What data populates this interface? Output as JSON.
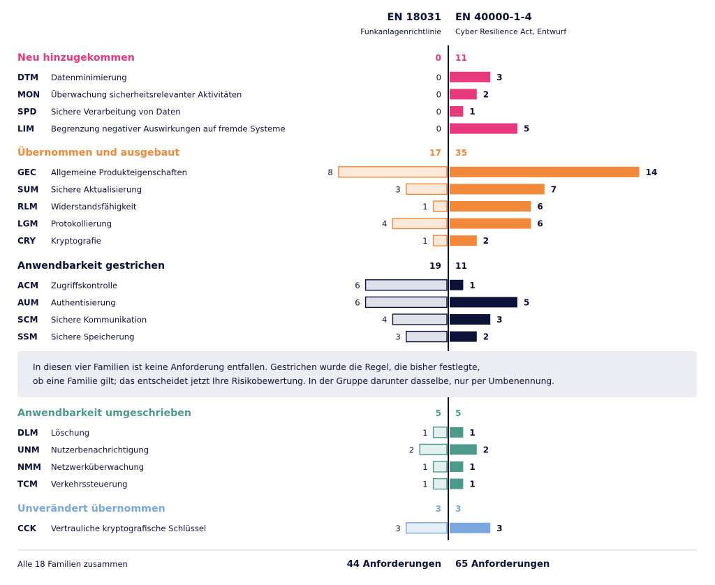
{
  "chart_data": {
    "type": "bar",
    "left_column": {
      "title": "EN 18031",
      "subtitle": "Funkanlagenrichtlinie"
    },
    "right_column": {
      "title": "EN 40000-1-4",
      "subtitle": "Cyber Resilience Act, Entwurf"
    },
    "groups": [
      {
        "label": "Neu hinzugekommen",
        "color": "#e8397d",
        "left_total": 0,
        "right_total": 11,
        "left_style": "none",
        "rows": [
          {
            "code": "DTM",
            "name": "Datenminimierung",
            "left": 0,
            "right": 3
          },
          {
            "code": "MON",
            "name": "Überwachung sicherheitsrelevanter Aktivitäten",
            "left": 0,
            "right": 2
          },
          {
            "code": "SPD",
            "name": "Sichere Verarbeitung von Daten",
            "left": 0,
            "right": 1
          },
          {
            "code": "LIM",
            "name": "Begrenzung negativer Auswirkungen auf fremde Systeme",
            "left": 0,
            "right": 5
          }
        ]
      },
      {
        "label": "Übernommen und ausgebaut",
        "color": "#f0893a",
        "light": "#fde9da",
        "left_total": 17,
        "right_total": 35,
        "rows": [
          {
            "code": "GEC",
            "name": "Allgemeine Produkteigenschaften",
            "left": 8,
            "right": 14
          },
          {
            "code": "SUM",
            "name": "Sichere Aktualisierung",
            "left": 3,
            "right": 7
          },
          {
            "code": "RLM",
            "name": "Widerstandsfähigkeit",
            "left": 1,
            "right": 6
          },
          {
            "code": "LGM",
            "name": "Protokollierung",
            "left": 4,
            "right": 6
          },
          {
            "code": "CRY",
            "name": "Kryptografie",
            "left": 1,
            "right": 2
          }
        ]
      },
      {
        "label": "Anwendbarkeit gestrichen",
        "color": "#0d1238",
        "light": "#dfe1e9",
        "left_total": 19,
        "right_total": 11,
        "rows": [
          {
            "code": "ACM",
            "name": "Zugriffskontrolle",
            "left": 6,
            "right": 1
          },
          {
            "code": "AUM",
            "name": "Authentisierung",
            "left": 6,
            "right": 5
          },
          {
            "code": "SCM",
            "name": "Sichere Kommunikation",
            "left": 4,
            "right": 3
          },
          {
            "code": "SSM",
            "name": "Sichere Speicherung",
            "left": 3,
            "right": 2
          }
        ]
      },
      {
        "label": "Anwendbarkeit umgeschrieben",
        "color": "#4d9a8c",
        "light": "#e3f0ed",
        "left_total": 5,
        "right_total": 5,
        "rows": [
          {
            "code": "DLM",
            "name": "Löschung",
            "left": 1,
            "right": 1
          },
          {
            "code": "UNM",
            "name": "Nutzerbenachrichtigung",
            "left": 2,
            "right": 2
          },
          {
            "code": "NMM",
            "name": "Netzwerküberwachung",
            "left": 1,
            "right": 1
          },
          {
            "code": "TCM",
            "name": "Verkehrssteuerung",
            "left": 1,
            "right": 1
          }
        ]
      },
      {
        "label": "Unverändert übernommen",
        "color": "#7ba7e0",
        "light": "#e5eef9",
        "left_total": 3,
        "right_total": 3,
        "rows": [
          {
            "code": "CCK",
            "name": "Vertrauliche kryptografische Schlüssel",
            "left": 3,
            "right": 3
          }
        ]
      }
    ],
    "footer": {
      "label": "Alle 18 Familien zusammen",
      "left": "44 Anforderungen",
      "right": "65 Anforderungen"
    }
  },
  "note": {
    "line1": "In diesen vier Familien ist keine Anforderung entfallen. Gestrichen wurde die Regel, die bisher festlegte,",
    "line2": "ob eine Familie gilt; das entscheidet jetzt Ihre Risikobewertung. In der Gruppe darunter dasselbe, nur per Umbenennung."
  }
}
